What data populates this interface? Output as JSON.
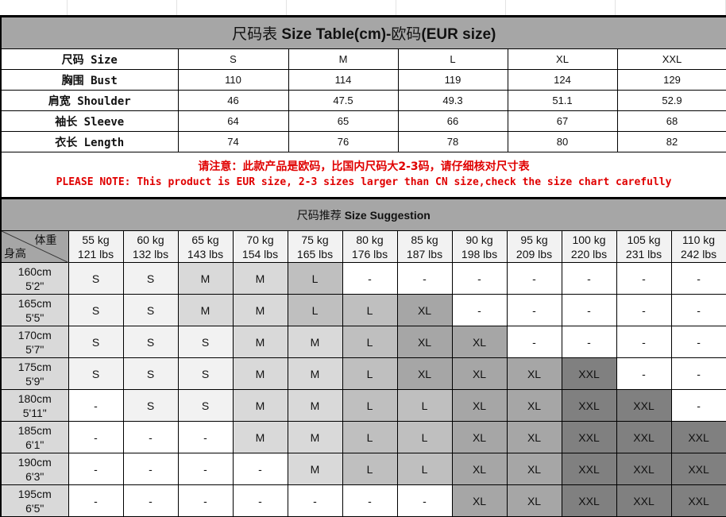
{
  "size_table": {
    "title_cn": "尺码表",
    "title_en": "Size Table(cm)-",
    "title_cn2": "欧码",
    "title_en2": "(EUR size)",
    "rows": [
      {
        "label": "尺码 Size",
        "values": [
          "S",
          "M",
          "L",
          "XL",
          "XXL"
        ]
      },
      {
        "label": "胸围 Bust",
        "values": [
          "110",
          "114",
          "119",
          "124",
          "129"
        ]
      },
      {
        "label": "肩宽 Shoulder",
        "values": [
          "46",
          "47.5",
          "49.3",
          "51.1",
          "52.9"
        ]
      },
      {
        "label": "袖长 Sleeve",
        "values": [
          "64",
          "65",
          "66",
          "67",
          "68"
        ]
      },
      {
        "label": "衣长 Length",
        "values": [
          "74",
          "76",
          "78",
          "80",
          "82"
        ]
      }
    ]
  },
  "note": {
    "cn": "请注意：此款产品是欧码，比国内尺码大2-3码，请仔细核对尺寸表",
    "en": "PLEASE NOTE: This product is EUR size, 2-3 sizes larger than CN size,check the size chart carefully"
  },
  "suggestion": {
    "title_cn": "尺码推荐",
    "title_en": "Size Suggestion",
    "corner_weight": "体重",
    "corner_height": "身高",
    "weights": [
      [
        "55 kg",
        "121 lbs"
      ],
      [
        "60 kg",
        "132 lbs"
      ],
      [
        "65 kg",
        "143 lbs"
      ],
      [
        "70 kg",
        "154 lbs"
      ],
      [
        "75 kg",
        "165 lbs"
      ],
      [
        "80 kg",
        "176 lbs"
      ],
      [
        "85 kg",
        "187 lbs"
      ],
      [
        "90 kg",
        "198 lbs"
      ],
      [
        "95 kg",
        "209 lbs"
      ],
      [
        "100 kg",
        "220 lbs"
      ],
      [
        "105 kg",
        "231 lbs"
      ],
      [
        "110 kg",
        "242 lbs"
      ]
    ],
    "rows": [
      {
        "cm": "160cm",
        "ft": "5'2\"",
        "sizes": [
          "S",
          "S",
          "M",
          "M",
          "L",
          "-",
          "-",
          "-",
          "-",
          "-",
          "-",
          "-"
        ]
      },
      {
        "cm": "165cm",
        "ft": "5'5\"",
        "sizes": [
          "S",
          "S",
          "M",
          "M",
          "L",
          "L",
          "XL",
          "-",
          "-",
          "-",
          "-",
          "-"
        ]
      },
      {
        "cm": "170cm",
        "ft": "5'7\"",
        "sizes": [
          "S",
          "S",
          "S",
          "M",
          "M",
          "L",
          "XL",
          "XL",
          "-",
          "-",
          "-",
          "-"
        ]
      },
      {
        "cm": "175cm",
        "ft": "5'9\"",
        "sizes": [
          "S",
          "S",
          "S",
          "M",
          "M",
          "L",
          "XL",
          "XL",
          "XL",
          "XXL",
          "-",
          "-"
        ]
      },
      {
        "cm": "180cm",
        "ft": "5'11\"",
        "sizes": [
          "-",
          "S",
          "S",
          "M",
          "M",
          "L",
          "L",
          "XL",
          "XL",
          "XXL",
          "XXL",
          "-"
        ]
      },
      {
        "cm": "185cm",
        "ft": "6'1\"",
        "sizes": [
          "-",
          "-",
          "-",
          "M",
          "M",
          "L",
          "L",
          "XL",
          "XL",
          "XXL",
          "XXL",
          "XXL"
        ]
      },
      {
        "cm": "190cm",
        "ft": "6'3\"",
        "sizes": [
          "-",
          "-",
          "-",
          "-",
          "M",
          "L",
          "L",
          "XL",
          "XL",
          "XXL",
          "XXL",
          "XXL"
        ]
      },
      {
        "cm": "195cm",
        "ft": "6'5\"",
        "sizes": [
          "-",
          "-",
          "-",
          "-",
          "-",
          "-",
          "-",
          "XL",
          "XL",
          "XXL",
          "XXL",
          "XXL"
        ]
      }
    ],
    "colors": {
      "S": "#f2f2f2",
      "M": "#d9d9d9",
      "L": "#bfbfbf",
      "XL": "#a6a6a6",
      "XXL": "#808080",
      "-": "#ffffff"
    }
  }
}
